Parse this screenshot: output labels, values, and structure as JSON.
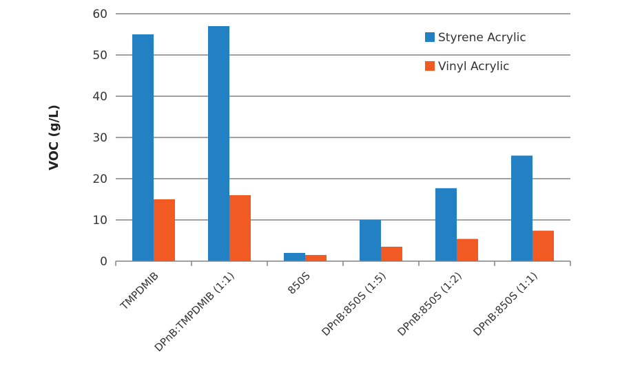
{
  "chart_data": {
    "type": "bar",
    "title": "",
    "xlabel": "",
    "ylabel": "VOC (g/L)",
    "ylim": [
      0,
      60
    ],
    "yticks": [
      0,
      10,
      20,
      30,
      40,
      50,
      60
    ],
    "grid": true,
    "legend_position": "top-right",
    "categories": [
      "TMPDMIB",
      "DPnB:TMPDMIB (1:1)",
      "850S",
      "DPnB:850S (1:5)",
      "DPnB:850S (1:2)",
      "DPnB:850S (1:1)"
    ],
    "series": [
      {
        "name": "Styrene Acrylic",
        "color": "#2280c3",
        "values": [
          55,
          57,
          2,
          10,
          17.7,
          25.6
        ]
      },
      {
        "name": "Vinyl Acrylic",
        "color": "#f15a22",
        "values": [
          15,
          16,
          1.5,
          3.5,
          5.4,
          7.4
        ]
      }
    ]
  }
}
